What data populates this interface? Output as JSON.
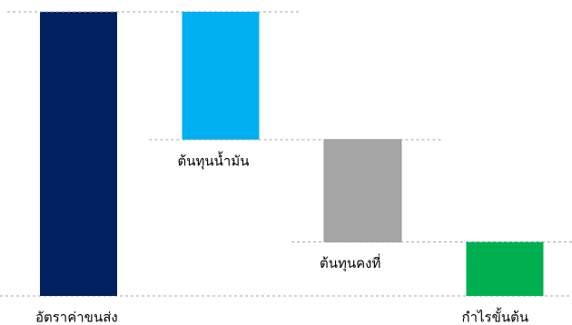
{
  "chart_data": {
    "type": "waterfall",
    "categories": [
      "อัตราค่าขนส่ง",
      "ต้นทุนน้ำมัน",
      "ต้นทุนคงที่",
      "กำไรขั้นต้น"
    ],
    "values": [
      100,
      -45,
      -36,
      19
    ],
    "measure": [
      "absolute",
      "relative",
      "relative",
      "total"
    ],
    "colors": [
      "#002060",
      "#00b0f0",
      "#a6a6a6",
      "#00b050"
    ],
    "ylim": [
      0,
      100
    ]
  }
}
